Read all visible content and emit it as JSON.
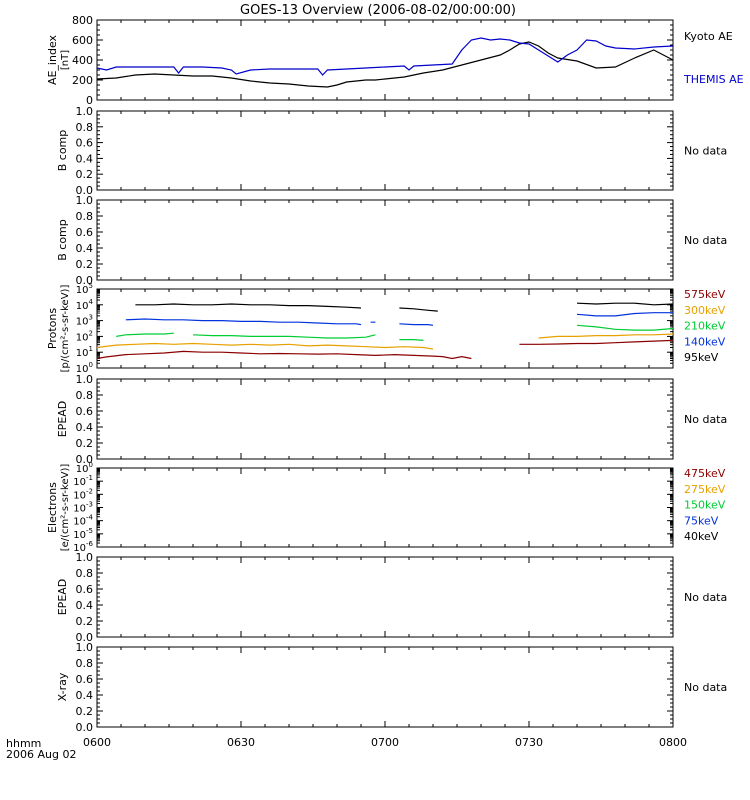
{
  "title": "GOES-13 Overview (2006-08-02/00:00:00)",
  "x_axis": {
    "corner_label_1": "hhmm",
    "corner_label_2": "2006 Aug 02",
    "ticks": [
      {
        "t": 0,
        "label": "0600"
      },
      {
        "t": 30,
        "label": "0630"
      },
      {
        "t": 60,
        "label": "0700"
      },
      {
        "t": 90,
        "label": "0730"
      },
      {
        "t": 120,
        "label": "0800"
      }
    ],
    "range_minutes": [
      0,
      120
    ]
  },
  "chart_data": [
    {
      "type": "line",
      "name": "ae_index",
      "ylabel": "AE_index",
      "yunit": "[nT]",
      "ylim": [
        0,
        800
      ],
      "yticks": [
        "0",
        "200",
        "400",
        "600",
        "800"
      ],
      "yscale": "linear",
      "series": [
        {
          "name": "Kyoto AE",
          "color": "#000000",
          "x": [
            0,
            4,
            8,
            12,
            16,
            20,
            24,
            28,
            32,
            36,
            40,
            44,
            48,
            50,
            52,
            54,
            56,
            58,
            60,
            64,
            68,
            72,
            76,
            80,
            84,
            86,
            88,
            90,
            92,
            94,
            96,
            100,
            104,
            108,
            112,
            116,
            120
          ],
          "y": [
            210,
            220,
            250,
            260,
            250,
            240,
            240,
            220,
            190,
            170,
            160,
            140,
            130,
            150,
            180,
            190,
            200,
            200,
            210,
            230,
            270,
            300,
            350,
            400,
            450,
            500,
            560,
            580,
            540,
            470,
            420,
            390,
            320,
            330,
            420,
            500,
            400
          ]
        },
        {
          "name": "THEMIS AE",
          "color": "#0000cc",
          "x": [
            0,
            2,
            4,
            8,
            12,
            16,
            17,
            18,
            22,
            26,
            28,
            29,
            32,
            36,
            40,
            44,
            46,
            47,
            48,
            52,
            56,
            60,
            64,
            65,
            66,
            70,
            74,
            76,
            78,
            80,
            82,
            84,
            86,
            88,
            90,
            92,
            94,
            96,
            98,
            100,
            102,
            104,
            106,
            108,
            112,
            116,
            120
          ],
          "y": [
            320,
            300,
            330,
            330,
            330,
            330,
            270,
            330,
            330,
            320,
            300,
            260,
            300,
            310,
            310,
            310,
            310,
            250,
            300,
            310,
            320,
            330,
            340,
            300,
            340,
            350,
            360,
            500,
            600,
            620,
            600,
            610,
            600,
            570,
            560,
            500,
            440,
            380,
            450,
            500,
            600,
            590,
            540,
            520,
            510,
            530,
            540
          ]
        }
      ]
    },
    {
      "type": "line",
      "name": "b_comp_1",
      "ylabel": "B comp",
      "ylim": [
        0,
        1
      ],
      "yticks": [
        "0.0",
        "0.2",
        "0.4",
        "0.6",
        "0.8",
        "1.0"
      ],
      "no_data": "No data",
      "series": []
    },
    {
      "type": "line",
      "name": "b_comp_2",
      "ylabel": "B comp",
      "ylim": [
        0,
        1
      ],
      "yticks": [
        "0.0",
        "0.2",
        "0.4",
        "0.6",
        "0.8",
        "1.0"
      ],
      "no_data": "No data",
      "series": []
    },
    {
      "type": "line",
      "name": "protons",
      "ylabel": "Protons",
      "yunit": "[p/(cm²-s-sr-keV)]",
      "yscale": "log",
      "ylim_exp": [
        0,
        5
      ],
      "ytick_exps": [
        0,
        1,
        2,
        3,
        4,
        5
      ],
      "series": [
        {
          "name": "575keV",
          "color": "#8b0000",
          "x": [
            0,
            2,
            6,
            10,
            14,
            18,
            22,
            26,
            30,
            34,
            38,
            42,
            46,
            50,
            54,
            58,
            62,
            66,
            70,
            72,
            74,
            76,
            78,
            null,
            88,
            92,
            96,
            100,
            104,
            108,
            112,
            116,
            120
          ],
          "y": [
            0.6,
            0.7,
            0.85,
            0.9,
            0.95,
            1.05,
            1.0,
            1.0,
            0.95,
            0.9,
            0.92,
            0.9,
            0.88,
            0.9,
            0.85,
            0.8,
            0.85,
            0.8,
            0.75,
            0.72,
            0.6,
            0.72,
            0.6,
            null,
            1.5,
            1.5,
            1.52,
            1.55,
            1.55,
            1.6,
            1.65,
            1.7,
            1.75
          ]
        },
        {
          "name": "300keV",
          "color": "#e8a000",
          "x": [
            0,
            4,
            8,
            12,
            16,
            20,
            24,
            28,
            32,
            36,
            40,
            44,
            48,
            52,
            56,
            60,
            64,
            68,
            70,
            null,
            92,
            96,
            100,
            104,
            108,
            112,
            116,
            120
          ],
          "y": [
            1.3,
            1.45,
            1.5,
            1.55,
            1.5,
            1.55,
            1.5,
            1.45,
            1.5,
            1.45,
            1.5,
            1.4,
            1.45,
            1.4,
            1.35,
            1.3,
            1.35,
            1.3,
            1.2,
            null,
            1.9,
            2.0,
            2.0,
            2.05,
            2.05,
            2.1,
            2.1,
            2.15
          ]
        },
        {
          "name": "210keV",
          "color": "#00cc33",
          "x": [
            4,
            6,
            10,
            14,
            16,
            null,
            20,
            24,
            28,
            32,
            36,
            40,
            44,
            48,
            52,
            56,
            58,
            null,
            63,
            66,
            68,
            null,
            100,
            104,
            108,
            112,
            116,
            120
          ],
          "y": [
            2.0,
            2.1,
            2.15,
            2.15,
            2.2,
            null,
            2.1,
            2.05,
            2.05,
            2.0,
            2.0,
            2.0,
            1.95,
            1.9,
            1.9,
            1.95,
            2.1,
            null,
            1.8,
            1.8,
            1.75,
            null,
            2.7,
            2.6,
            2.45,
            2.4,
            2.4,
            2.5
          ]
        },
        {
          "name": "140keV",
          "color": "#0033dd",
          "x": [
            6,
            10,
            14,
            18,
            22,
            26,
            30,
            34,
            38,
            42,
            46,
            50,
            54,
            55,
            null,
            57,
            58,
            null,
            63,
            66,
            69,
            70,
            null,
            100,
            104,
            108,
            112,
            116,
            120
          ],
          "y": [
            3.05,
            3.1,
            3.05,
            3.05,
            3.0,
            3.0,
            2.95,
            2.95,
            2.9,
            2.9,
            2.85,
            2.8,
            2.8,
            2.75,
            null,
            2.9,
            2.9,
            null,
            2.8,
            2.75,
            2.75,
            2.7,
            null,
            3.4,
            3.3,
            3.3,
            3.45,
            3.5,
            3.5
          ]
        },
        {
          "name": "95keV",
          "color": "#000000",
          "x": [
            8,
            12,
            16,
            20,
            24,
            28,
            32,
            36,
            40,
            44,
            48,
            52,
            55,
            null,
            58,
            null,
            63,
            66,
            69,
            71,
            null,
            100,
            104,
            108,
            112,
            116,
            120
          ],
          "y": [
            4.0,
            4.0,
            4.05,
            4.0,
            4.0,
            4.05,
            4.0,
            4.0,
            3.95,
            3.95,
            3.9,
            3.85,
            3.8,
            null,
            3.6,
            null,
            3.8,
            3.75,
            3.65,
            3.6,
            null,
            4.1,
            4.05,
            4.1,
            4.1,
            4.0,
            4.05
          ]
        }
      ]
    },
    {
      "type": "line",
      "name": "epead_1",
      "ylabel": "EPEAD",
      "ylim": [
        0,
        1
      ],
      "yticks": [
        "0.0",
        "0.2",
        "0.4",
        "0.6",
        "0.8",
        "1.0"
      ],
      "no_data": "No data",
      "series": []
    },
    {
      "type": "line",
      "name": "electrons",
      "ylabel": "Electrons",
      "yunit": "[e/(cm²-s-sr-keV)]",
      "yscale": "log",
      "ylim_exp": [
        -6,
        0
      ],
      "ytick_exps": [
        -6,
        -5,
        -4,
        -3,
        -2,
        -1,
        0
      ],
      "legend_only": [
        "475keV",
        "275keV",
        "150keV",
        "75keV",
        "40keV"
      ],
      "legend_colors": [
        "#8b0000",
        "#e8a000",
        "#00cc33",
        "#0033dd",
        "#000000"
      ],
      "series": []
    },
    {
      "type": "line",
      "name": "epead_2",
      "ylabel": "EPEAD",
      "ylim": [
        0,
        1
      ],
      "yticks": [
        "0.0",
        "0.2",
        "0.4",
        "0.6",
        "0.8",
        "1.0"
      ],
      "no_data": "No data",
      "series": []
    },
    {
      "type": "line",
      "name": "xray",
      "ylabel": "X-ray",
      "ylim": [
        0,
        1
      ],
      "yticks": [
        "0.0",
        "0.2",
        "0.4",
        "0.6",
        "0.8",
        "1.0"
      ],
      "no_data": "No data",
      "series": []
    }
  ]
}
